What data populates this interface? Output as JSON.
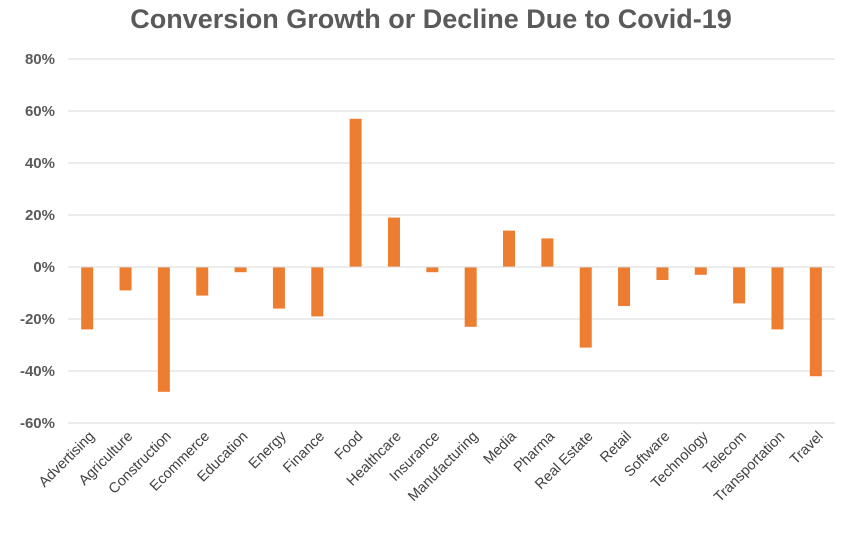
{
  "chart_data": {
    "type": "bar",
    "title": "Conversion Growth or Decline Due to Covid-19",
    "xlabel": "",
    "ylabel": "",
    "ylim": [
      -60,
      80
    ],
    "yticks": [
      80,
      60,
      40,
      20,
      0,
      -20,
      -40,
      -60
    ],
    "ytick_labels": [
      "80%",
      "60%",
      "40%",
      "20%",
      "0%",
      "-20%",
      "-40%",
      "-60%"
    ],
    "grid": true,
    "bar_color": "#ED7D31",
    "categories": [
      "Advertising",
      "Agriculture",
      "Construction",
      "Ecommerce",
      "Education",
      "Energy",
      "Finance",
      "Food",
      "Healthcare",
      "Insurance",
      "Manufacturing",
      "Media",
      "Pharma",
      "Real Estate",
      "Retail",
      "Software",
      "Technology",
      "Telecom",
      "Transportation",
      "Travel"
    ],
    "values": [
      -24,
      -9,
      -48,
      -11,
      -2,
      -16,
      -19,
      57,
      19,
      -2,
      -23,
      14,
      11,
      -31,
      -15,
      -5,
      -3,
      -14,
      -24,
      -42
    ]
  }
}
